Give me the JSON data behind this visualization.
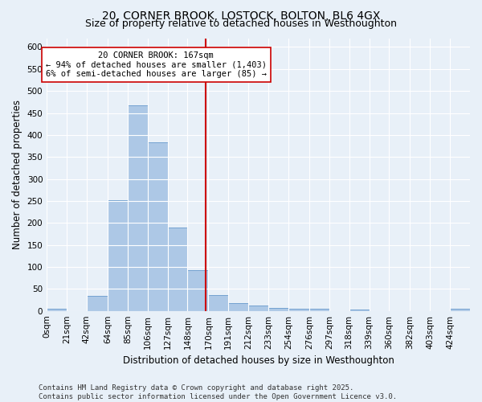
{
  "title_line1": "20, CORNER BROOK, LOSTOCK, BOLTON, BL6 4GX",
  "title_line2": "Size of property relative to detached houses in Westhoughton",
  "xlabel": "Distribution of detached houses by size in Westhoughton",
  "ylabel": "Number of detached properties",
  "bar_color": "#adc8e6",
  "bar_edge_color": "#6699cc",
  "background_color": "#e8f0f8",
  "grid_color": "#ffffff",
  "categories": [
    "0sqm",
    "21sqm",
    "42sqm",
    "64sqm",
    "85sqm",
    "106sqm",
    "127sqm",
    "148sqm",
    "170sqm",
    "191sqm",
    "212sqm",
    "233sqm",
    "254sqm",
    "276sqm",
    "297sqm",
    "318sqm",
    "339sqm",
    "360sqm",
    "382sqm",
    "403sqm",
    "424sqm"
  ],
  "bin_edges": [
    0,
    21,
    42,
    64,
    85,
    106,
    127,
    148,
    170,
    191,
    212,
    233,
    254,
    276,
    297,
    318,
    339,
    360,
    382,
    403,
    424,
    445
  ],
  "values": [
    4,
    0,
    35,
    252,
    467,
    383,
    190,
    93,
    36,
    18,
    12,
    7,
    5,
    4,
    0,
    3,
    0,
    0,
    0,
    0,
    4
  ],
  "ylim": [
    0,
    620
  ],
  "yticks": [
    0,
    50,
    100,
    150,
    200,
    250,
    300,
    350,
    400,
    450,
    500,
    550,
    600
  ],
  "vline_x": 167,
  "vline_color": "#cc0000",
  "annotation_text": "20 CORNER BROOK: 167sqm\n← 94% of detached houses are smaller (1,403)\n6% of semi-detached houses are larger (85) →",
  "annotation_box_color": "#ffffff",
  "annotation_box_edge": "#cc0000",
  "footnote": "Contains HM Land Registry data © Crown copyright and database right 2025.\nContains public sector information licensed under the Open Government Licence v3.0.",
  "title_fontsize": 10,
  "subtitle_fontsize": 9,
  "axis_label_fontsize": 8.5,
  "tick_fontsize": 7.5,
  "annotation_fontsize": 7.5,
  "footnote_fontsize": 6.5
}
